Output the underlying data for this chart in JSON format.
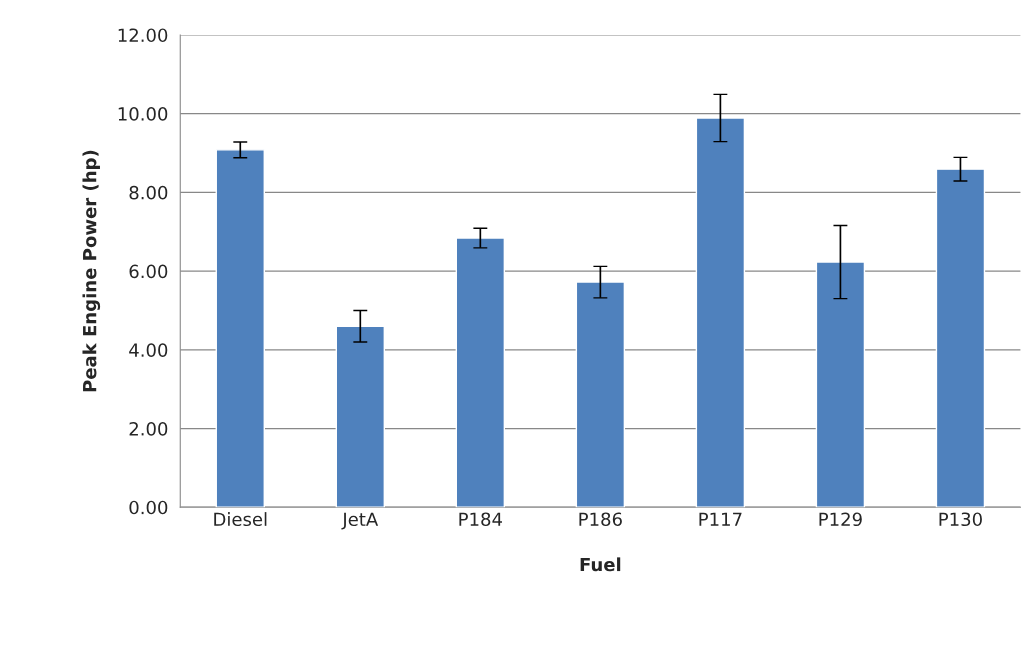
{
  "chart_data": {
    "type": "bar",
    "xlabel": "Fuel",
    "ylabel": "Peak Engine Power (hp)",
    "categories": [
      "Diesel",
      "JetA",
      "P184",
      "P186",
      "P117",
      "P129",
      "P130"
    ],
    "values": [
      9.08,
      4.6,
      6.84,
      5.72,
      9.89,
      6.23,
      8.59
    ],
    "errors": [
      0.2,
      0.4,
      0.25,
      0.4,
      0.6,
      0.93,
      0.3
    ],
    "color": "#4f81bd",
    "ylim": [
      0,
      12
    ],
    "yticks": [
      {
        "value": 0,
        "label": "0.00"
      },
      {
        "value": 2,
        "label": "2.00"
      },
      {
        "value": 4,
        "label": "4.00"
      },
      {
        "value": 6,
        "label": "6.00"
      },
      {
        "value": 8,
        "label": "8.00"
      },
      {
        "value": 10,
        "label": "10.00"
      },
      {
        "value": 12,
        "label": "12.00"
      }
    ],
    "grid": "y",
    "legend": false
  }
}
